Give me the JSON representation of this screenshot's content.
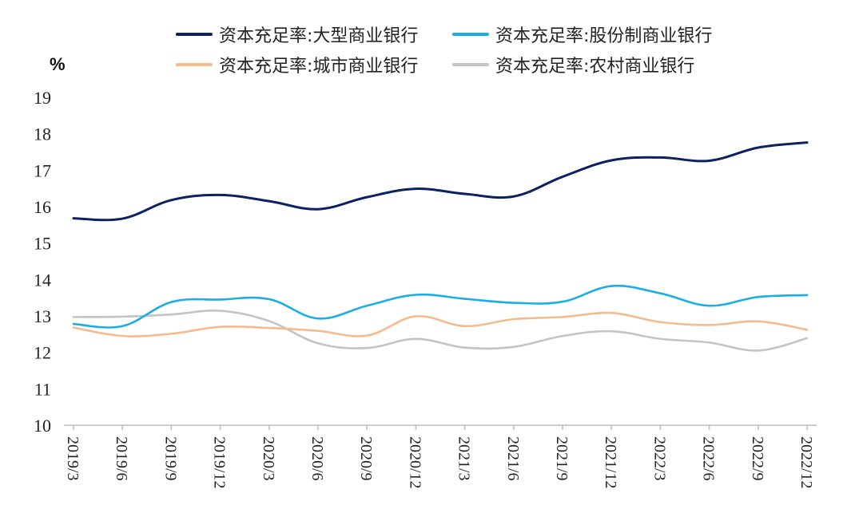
{
  "chart_data": {
    "type": "line",
    "title": "",
    "xlabel": "",
    "ylabel": "%",
    "ylim": [
      10,
      19
    ],
    "yticks": [
      "10",
      "11",
      "12",
      "13",
      "14",
      "15",
      "16",
      "17",
      "18",
      "19"
    ],
    "categories": [
      "2019/3",
      "2019/6",
      "2019/9",
      "2019/12",
      "2020/3",
      "2020/6",
      "2020/9",
      "2020/12",
      "2021/3",
      "2021/6",
      "2021/9",
      "2021/12",
      "2022/3",
      "2022/6",
      "2022/9",
      "2022/12"
    ],
    "legend_position": "top",
    "grid": false,
    "series": [
      {
        "name": "资本充足率:大型商业银行",
        "color": "#0c2161",
        "values": [
          15.68,
          15.67,
          16.18,
          16.32,
          16.15,
          15.93,
          16.26,
          16.49,
          16.35,
          16.28,
          16.82,
          17.27,
          17.35,
          17.26,
          17.62,
          17.76
        ]
      },
      {
        "name": "资本充足率:股份制商业银行",
        "color": "#1aaee6",
        "values": [
          12.78,
          12.72,
          13.38,
          13.45,
          13.46,
          12.93,
          13.28,
          13.58,
          13.47,
          13.36,
          13.39,
          13.82,
          13.62,
          13.28,
          13.52,
          13.57
        ]
      },
      {
        "name": "资本充足率:城市商业银行",
        "color": "#f4bc8e",
        "values": [
          12.68,
          12.45,
          12.51,
          12.7,
          12.67,
          12.59,
          12.46,
          12.99,
          12.72,
          12.91,
          12.97,
          13.08,
          12.83,
          12.75,
          12.85,
          12.62
        ]
      },
      {
        "name": "资本充足率:农村商业银行",
        "color": "#c4c4c4",
        "values": [
          12.97,
          12.98,
          13.04,
          13.14,
          12.86,
          12.25,
          12.12,
          12.37,
          12.13,
          12.15,
          12.45,
          12.58,
          12.37,
          12.27,
          12.05,
          12.39
        ]
      }
    ]
  }
}
